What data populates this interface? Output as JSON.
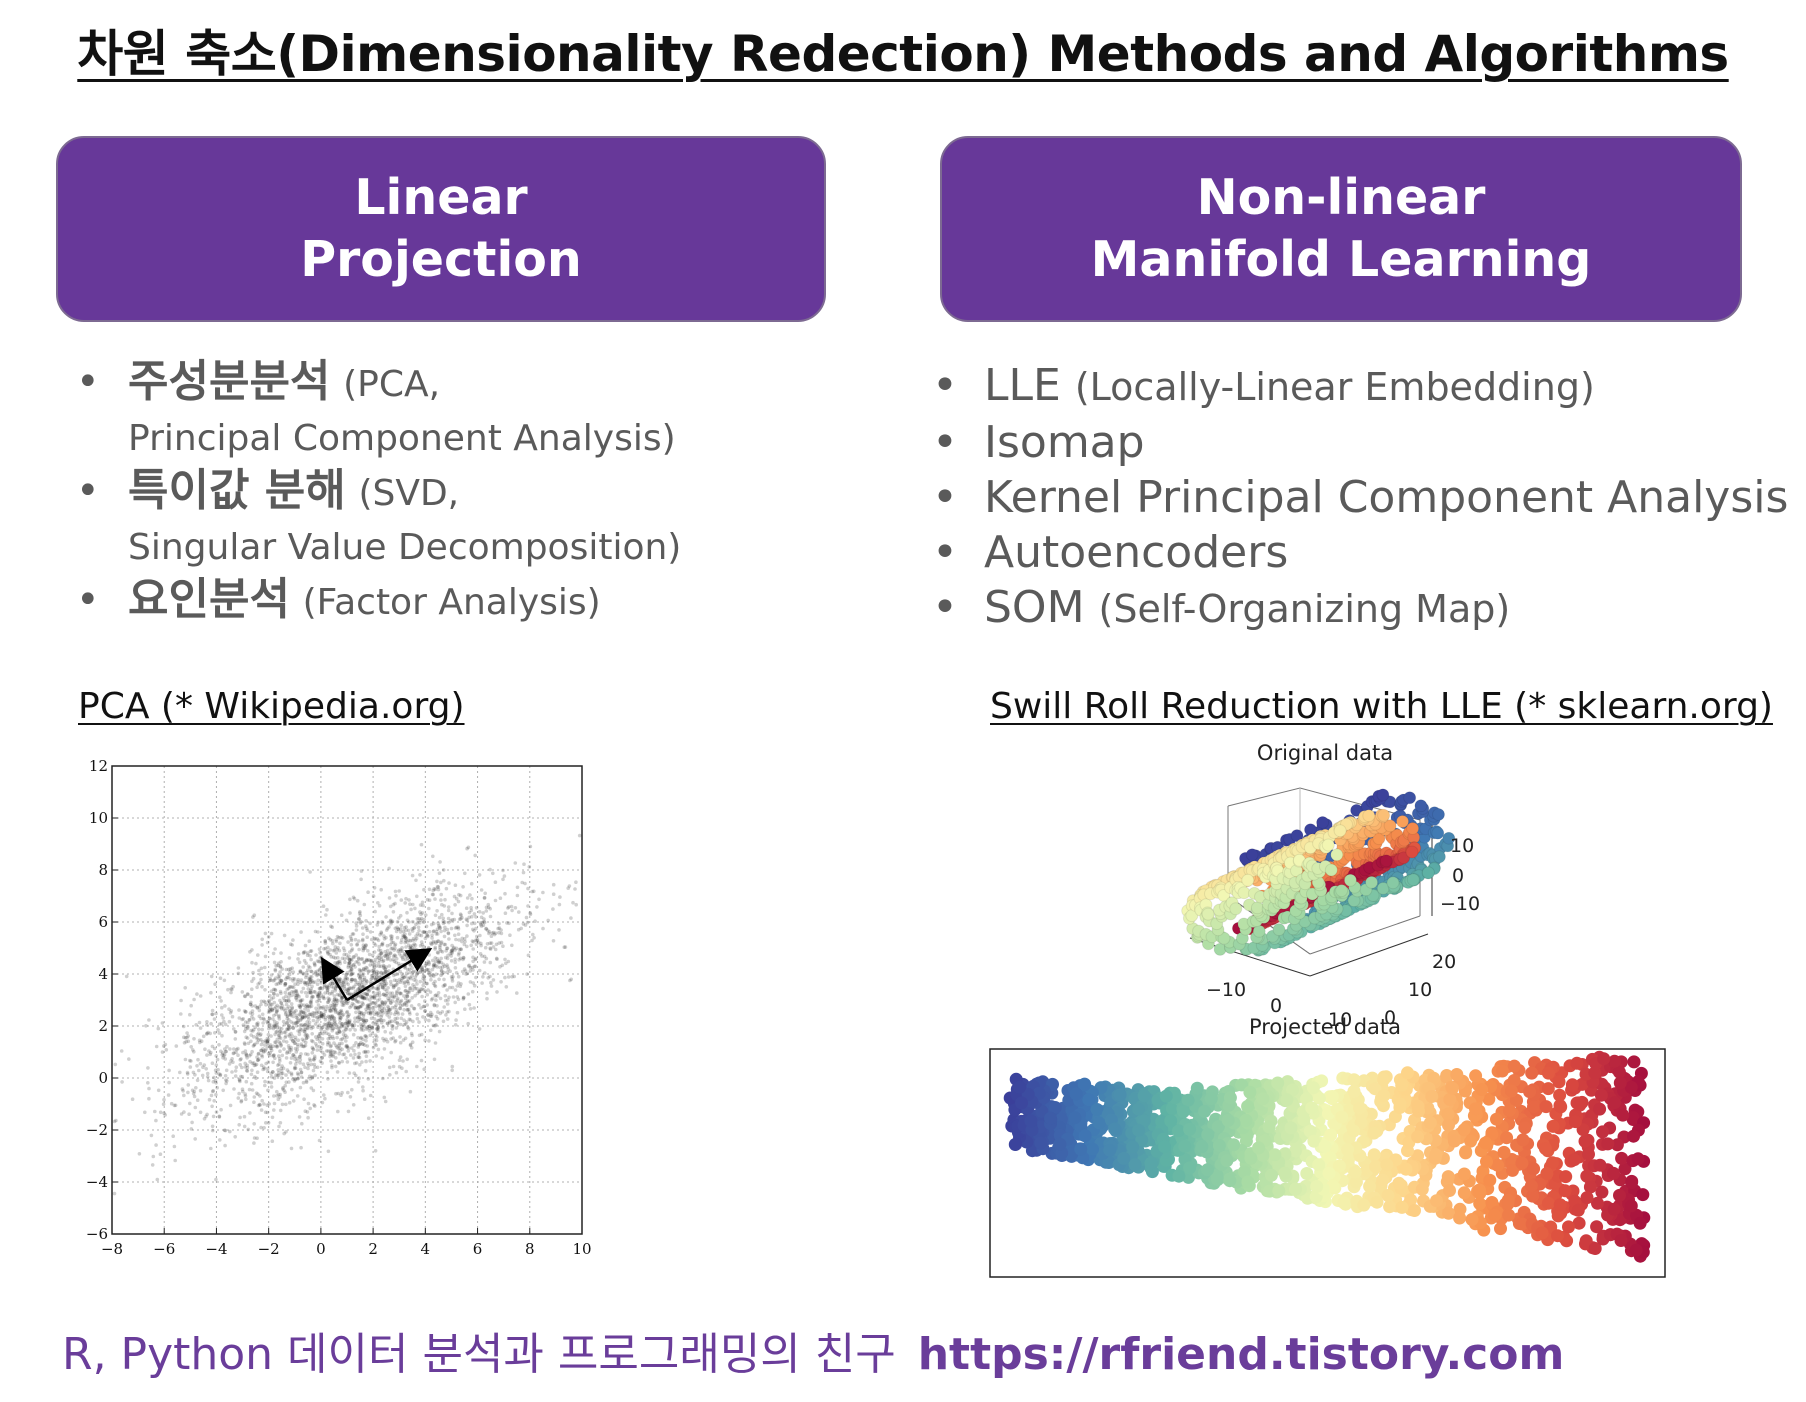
{
  "title": "차원 축소(Dimensionality Redection) Methods and Algorithms",
  "linear": {
    "heading_line1": "Linear",
    "heading_line2": "Projection",
    "items": [
      {
        "name": "주성분분석",
        "detail1": "(PCA,",
        "detail2": "Principal Component Analysis)"
      },
      {
        "name": "특이값 분해",
        "detail1": "(SVD,",
        "detail2": "Singular Value Decomposition)"
      },
      {
        "name": "요인분석",
        "detail1": "(Factor Analysis)"
      }
    ]
  },
  "nonlinear": {
    "heading_line1": "Non-linear",
    "heading_line2": "Manifold Learning",
    "items": [
      {
        "name": "LLE",
        "detail": "(Locally-Linear Embedding)"
      },
      {
        "name": "Isomap"
      },
      {
        "name": "Kernel Principal Component Analysis"
      },
      {
        "name": "Autoencoders"
      },
      {
        "name": "SOM",
        "detail": "(Self-Organizing Map)"
      }
    ]
  },
  "pca_figure": {
    "caption": "PCA (* Wikipedia.org)",
    "x_ticks": [
      "−8",
      "−6",
      "−4",
      "−2",
      "0",
      "2",
      "4",
      "6",
      "8",
      "10"
    ],
    "y_ticks": [
      "−6",
      "−4",
      "−2",
      "0",
      "2",
      "4",
      "6",
      "8",
      "10",
      "12"
    ]
  },
  "lle_figure": {
    "caption": "Swill Roll Reduction with LLE (* sklearn.org)",
    "top_title": "Original data",
    "bottom_title": "Projected data",
    "z_ticks": [
      "10",
      "0",
      "−10"
    ],
    "x_ticks": [
      "−10",
      "0",
      "10"
    ],
    "y_ticks": [
      "20",
      "10",
      "0"
    ]
  },
  "chart_data": [
    {
      "type": "scatter",
      "title": "",
      "xlabel": "",
      "ylabel": "",
      "xlim": [
        -8,
        10
      ],
      "ylim": [
        -6,
        12
      ],
      "grid": true,
      "distribution": {
        "mean": [
          1,
          3
        ],
        "principal_axis_1": [
          3.0,
          1.7
        ],
        "principal_axis_2": [
          -0.7,
          1.2
        ]
      },
      "arrows": [
        {
          "from": [
            1,
            3
          ],
          "to": [
            4.1,
            4.9
          ]
        },
        {
          "from": [
            1,
            3
          ],
          "to": [
            0.1,
            4.5
          ]
        }
      ]
    },
    {
      "type": "scatter",
      "title": "Original data",
      "xlim": [
        -10,
        10
      ],
      "ylim": [
        0,
        20
      ],
      "zlim": [
        -10,
        10
      ]
    },
    {
      "type": "scatter",
      "title": "Projected data",
      "colormap": [
        "#3b3f9a",
        "#3f78b4",
        "#5fb3a4",
        "#a8dba4",
        "#f2f7b4",
        "#fdd58a",
        "#f7924e",
        "#dc4c3f",
        "#a50f3e"
      ]
    }
  ],
  "footer": {
    "text": "R, Python 데이터 분석과 프로그래밍의 친구",
    "url": "https://rfriend.tistory.com"
  }
}
